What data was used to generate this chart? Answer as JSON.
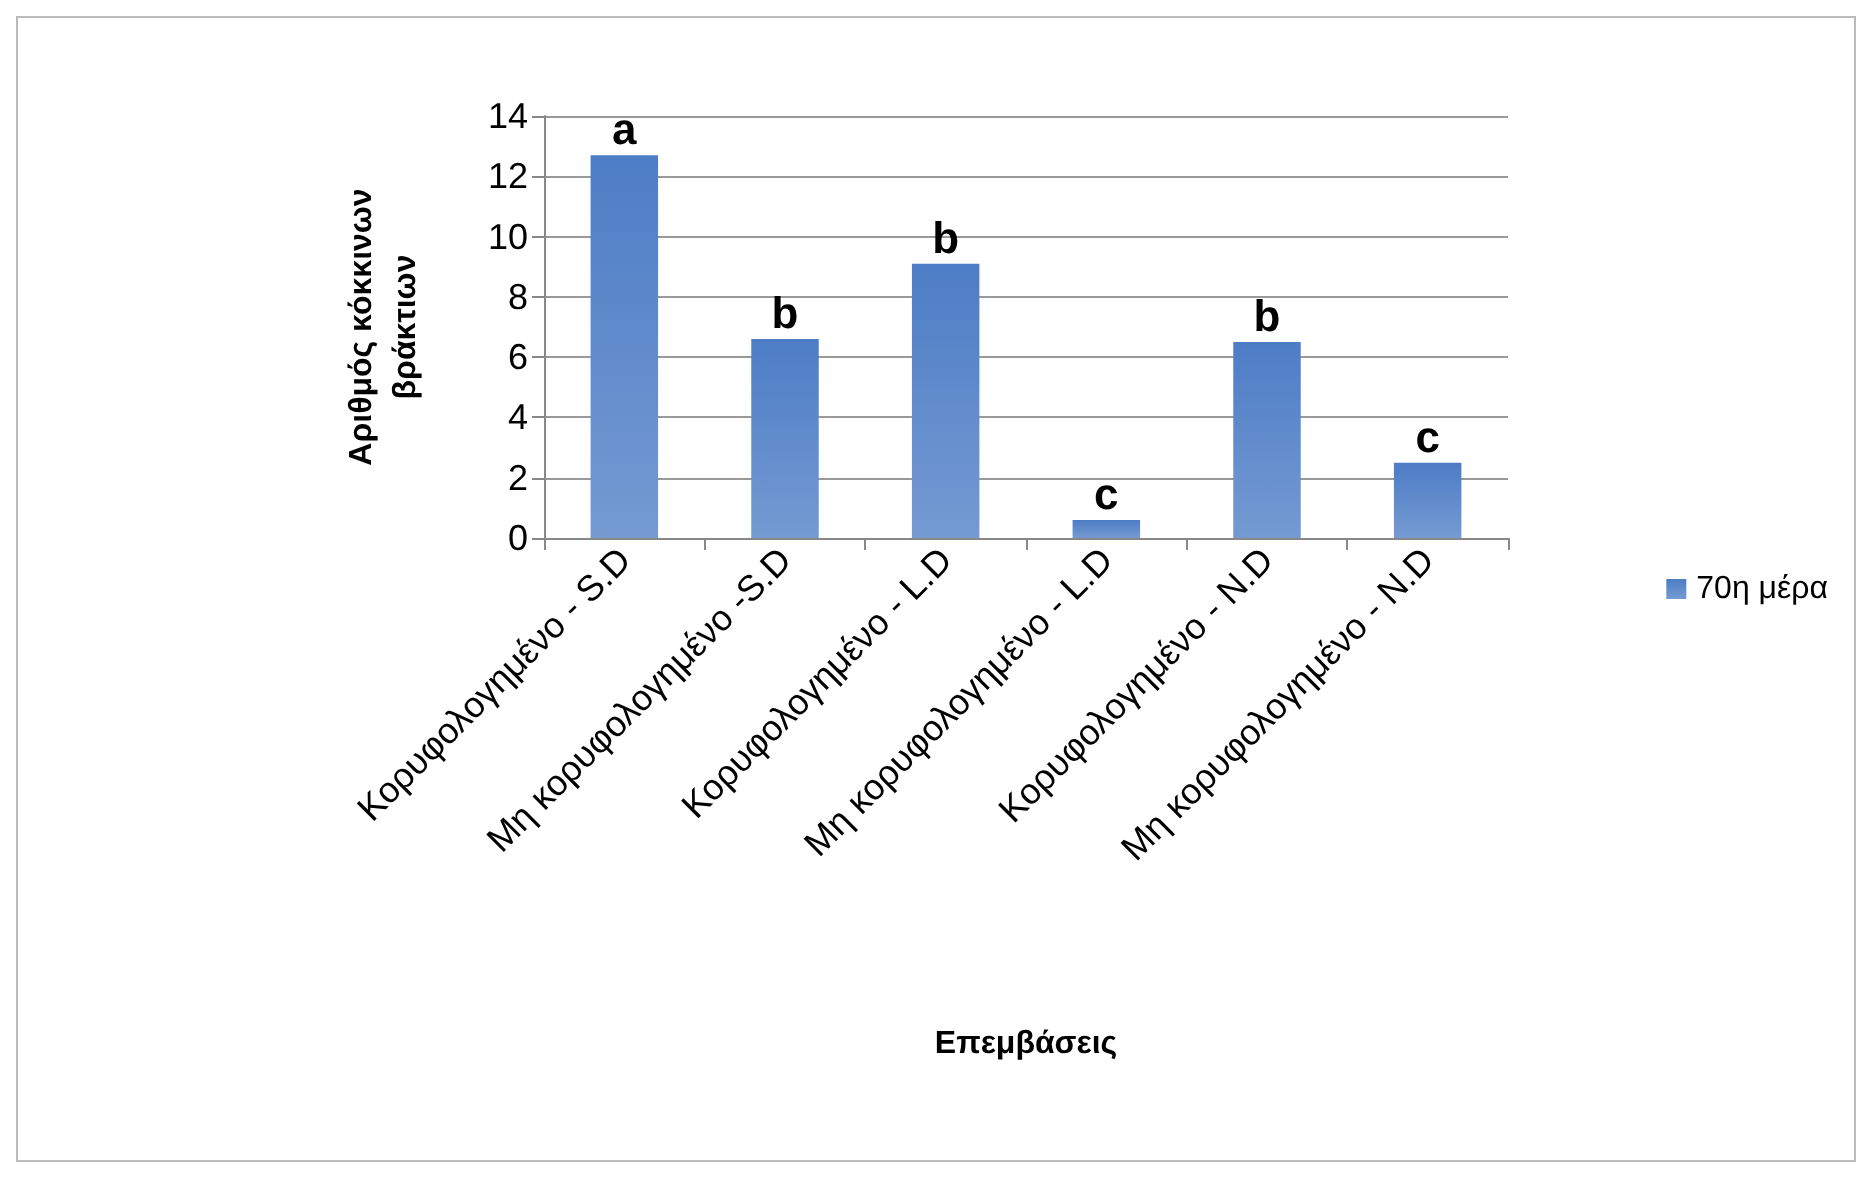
{
  "chart_data": {
    "type": "bar",
    "xlabel": "Επεμβάσεις",
    "ylabel": "Αριθμός κόκκινων\nβράκτιων",
    "categories": [
      "Κορυφολογημένο - S.D",
      "Μη κορυφολογημένο -S.D",
      "Κορυφολογημένο - L.D",
      "Μη κορυφολογημένο - L.D",
      "Κορυφολογημένο - N.D",
      "Μη κορυφολογημένο - N.D"
    ],
    "series": [
      {
        "name": "70η μέρα",
        "color": "#3a6fc0",
        "values": [
          12.7,
          6.6,
          9.1,
          0.6,
          6.5,
          2.5
        ]
      }
    ],
    "ylim": [
      0,
      14
    ],
    "yticks": [
      0,
      2,
      4,
      6,
      8,
      10,
      12,
      14
    ],
    "grid": "y",
    "legend": "right",
    "annotations": [
      {
        "text": "a",
        "x": "Κορυφολογημένο - S.D",
        "y": 12.7
      },
      {
        "text": "b",
        "x": "Μη κορυφολογημένο -S.D",
        "y": 6.6
      },
      {
        "text": "b",
        "x": "Κορυφολογημένο - L.D",
        "y": 9.1
      },
      {
        "text": "c",
        "x": "Μη κορυφολογημένο - L.D",
        "y": 0.6
      },
      {
        "text": "b",
        "x": "Κορυφολογημένο - N.D",
        "y": 6.5
      },
      {
        "text": "c",
        "x": "Μη κορυφολογημένο - N.D",
        "y": 2.5
      }
    ]
  }
}
